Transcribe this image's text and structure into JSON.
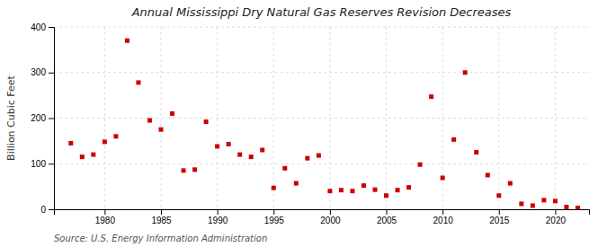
{
  "chart_data": {
    "type": "scatter",
    "title": "Annual Mississippi Dry Natural Gas Reserves Revision Decreases",
    "y_label": "Billion Cubic Feet",
    "annotations": [
      "Source: U.S. Energy Information Administration"
    ],
    "x": [
      1977,
      1978,
      1979,
      1980,
      1981,
      1982,
      1983,
      1984,
      1985,
      1986,
      1987,
      1988,
      1989,
      1990,
      1991,
      1992,
      1993,
      1994,
      1995,
      1996,
      1997,
      1998,
      1999,
      2000,
      2001,
      2002,
      2003,
      2004,
      2005,
      2006,
      2007,
      2008,
      2009,
      2010,
      2011,
      2012,
      2013,
      2014,
      2015,
      2016,
      2017,
      2018,
      2019,
      2020,
      2021,
      2022
    ],
    "values": [
      145,
      115,
      120,
      148,
      160,
      370,
      278,
      195,
      175,
      210,
      85,
      87,
      192,
      138,
      143,
      120,
      115,
      130,
      47,
      90,
      57,
      112,
      118,
      40,
      42,
      40,
      52,
      43,
      30,
      42,
      48,
      98,
      247,
      69,
      153,
      300,
      125,
      75,
      30,
      57,
      12,
      8,
      20,
      18,
      5,
      3
    ],
    "color": "#cc0000",
    "marker": "square",
    "xlim": [
      1975.5,
      2023
    ],
    "ylim": [
      0,
      400
    ],
    "xticks": [
      1980,
      1985,
      1990,
      1995,
      2000,
      2005,
      2010,
      2015,
      2020
    ],
    "yticks": [
      0,
      100,
      200,
      300,
      400
    ],
    "grid": true
  }
}
